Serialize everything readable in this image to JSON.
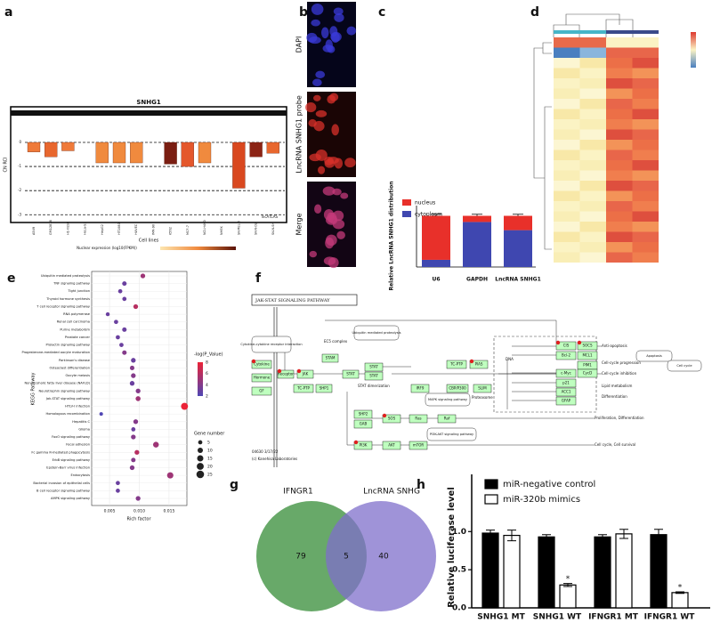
{
  "panel_labels": [
    "a",
    "b",
    "c",
    "d",
    "e",
    "f",
    "g",
    "h"
  ],
  "a": {
    "type": "bar",
    "title": "SNHG1",
    "xlabel": "Cell lines",
    "ylabel": "CN RCI",
    "legend_title": "Nuclear expression (log10(FPKM))",
    "source": "lncATLAS",
    "categories": [
      "A549",
      "GM12878",
      "H1-hESC",
      "HeLa-S3",
      "HepG2",
      "HT1080",
      "HUVEC",
      "IMR-90",
      "K562",
      "MCF-7",
      "NCI-H460",
      "NHEK",
      "SK-MEL-5",
      "SK-N-DZ",
      "SK-N-SH"
    ],
    "values": [
      -0.4,
      -0.6,
      -0.35,
      null,
      -0.85,
      -0.85,
      -0.85,
      null,
      -0.9,
      -1.0,
      -0.85,
      null,
      -1.9,
      -0.6,
      -0.45
    ],
    "colors": [
      "#ef7a3a",
      "#e8672e",
      "#ef7a3a",
      "#ffffff",
      "#f08a3e",
      "#f08a3e",
      "#f08a3e",
      "#ffffff",
      "#7a1e12",
      "#e4572c",
      "#f08a3e",
      "#ffffff",
      "#d9481f",
      "#8c2415",
      "#e8672e"
    ],
    "ylim": [
      -3.3,
      1.5
    ],
    "yticks": [
      0,
      -1,
      -2,
      -3
    ]
  },
  "b": {
    "rows": [
      "DAPI",
      "LncRNA SNHG1 probe",
      "Merge"
    ]
  },
  "c": {
    "type": "bar",
    "stacked": true,
    "ylabel": "Relative LncRNA SNHG1 distribution",
    "categories": [
      "U6",
      "GAPDH",
      "LncRNA SNHG1"
    ],
    "series": [
      {
        "name": "nucleus",
        "color": "#e8302a",
        "values": [
          86,
          12,
          28
        ],
        "errors": [
          3,
          3,
          3
        ]
      },
      {
        "name": "cytoplasm",
        "color": "#3f47b0",
        "values": [
          14,
          88,
          72
        ]
      }
    ],
    "ylim": [
      0,
      120
    ]
  },
  "d": {
    "type": "heatmap"
  },
  "e": {
    "type": "scatter",
    "xlabel": "Rich factor",
    "ylabel": "KEGG Pathway",
    "color_legend_title": "-log(P_Value)",
    "size_legend_title": "Gene number",
    "pathways": [
      "Ubiquitin mediated proteolysis",
      "TNF signaling pathway",
      "Tight junction",
      "Thyroid hormone synthesis",
      "T cell receptor signaling pathway",
      "RNA polymerase",
      "Renal cell carcinoma",
      "Purine metabolism",
      "Prostate cancer",
      "Prolactin signaling pathway",
      "Progesterone-mediated oocyte maturation",
      "Parkinson's disease",
      "Osteoclast differentiation",
      "Oocyte meiosis",
      "Non-alcoholic fatty liver disease (NAFLD)",
      "Neurotrophin signaling pathway",
      "Jak-STAT signaling pathway",
      "HTLV-I infection",
      "Homologous recombination",
      "Hepatitis C",
      "Glioma",
      "FoxO signaling pathway",
      "Focal adhesion",
      "Fc gamma R-mediated phagocytosis",
      "ErbB signaling pathway",
      "Epstein-Barr virus infection",
      "Endocytosis",
      "Bacterial invasion of epithelial cells",
      "B cell receptor signaling pathway",
      "AMPK signaling pathway"
    ],
    "rich_factor": [
      0.0106,
      0.0075,
      0.0068,
      0.0075,
      0.0094,
      0.0047,
      0.0061,
      0.0075,
      0.0064,
      0.007,
      0.0075,
      0.009,
      0.0088,
      0.009,
      0.0088,
      0.0098,
      0.0098,
      0.0176,
      0.0036,
      0.0094,
      0.009,
      0.009,
      0.0128,
      0.0096,
      0.009,
      0.0088,
      0.0152,
      0.0064,
      0.0064,
      0.0098
    ],
    "neg_log_p": [
      5,
      3,
      3,
      3,
      6,
      3,
      3,
      3,
      3,
      3,
      4,
      3,
      4,
      4,
      3,
      4,
      5,
      8,
      2,
      4,
      3,
      4,
      5,
      6,
      4,
      4,
      5,
      3,
      3,
      4
    ],
    "gene_number": [
      7,
      6,
      5,
      5,
      7,
      4,
      5,
      6,
      5,
      5,
      6,
      7,
      6,
      7,
      7,
      7,
      8,
      20,
      3,
      7,
      5,
      7,
      12,
      7,
      6,
      7,
      15,
      5,
      5,
      7
    ],
    "xlim": [
      0.002,
      0.018
    ],
    "xticks": [
      0.005,
      {
        "value": 0.01,
        "label": "0.010"
      },
      0.015
    ],
    "color_ticks": [
      2,
      4,
      6,
      8
    ],
    "size_ticks": [
      5,
      10,
      15,
      20,
      25
    ]
  },
  "f": {
    "title": "JAK-STAT SIGNALING PATHWAY",
    "nodes": [
      "Cytokine-cytokine receptor interaction",
      "Cytokine",
      "Hormone",
      "GF",
      "Receptor",
      "JAK",
      "TC-PTP",
      "SHP1",
      "STAM",
      "STAT",
      "EC5 complex",
      "Ubiquitin mediated proteolysis",
      "STAT",
      "STAT",
      "STAT dimerization",
      "IRF9",
      "CBP/P300",
      "SLIM",
      "TC-PTP",
      "PIAS",
      "Proteasome",
      "DNA",
      "CIS",
      "SOCS",
      "Bcl-2",
      "MCL1",
      "PIM1",
      "c-Myc",
      "CycD",
      "p21",
      "ACC1",
      "GFAP",
      "Anti-apoptosis",
      "Cell-cycle progression",
      "Cell-cycle inhibition",
      "Lipid metabolism",
      "Differentiation",
      "Apoptosis",
      "Cell cycle",
      "SHP2",
      "GAB",
      "SOS",
      "Ras",
      "Raf",
      "MAPK signaling pathway",
      "PI3K",
      "AKT",
      "mTOR",
      "PI3K-AKT signaling pathway",
      "Proliferation, Differentiation",
      "Cell cycle, Cell survival",
      "04630 3/17/22",
      "(c) Kanehisa Laboratories"
    ]
  },
  "g": {
    "type": "venn",
    "sets": [
      "IFNGR1",
      "LncRNA SNHG"
    ],
    "only_first": 79,
    "both": 5,
    "only_second": 40
  },
  "h": {
    "type": "bar",
    "ylabel": "Relative luciferase level",
    "categories": [
      "SNHG1 MT",
      "SNHG1 WT",
      "IFNGR1 MT",
      "IFNGR1 WT"
    ],
    "series": [
      {
        "name": "miR-negative control",
        "color": "#000000",
        "values": [
          0.98,
          0.93,
          0.93,
          0.96
        ],
        "errors": [
          0.04,
          0.03,
          0.03,
          0.07
        ]
      },
      {
        "name": "miR-320b mimics",
        "color": "#ffffff",
        "values": [
          0.95,
          0.3,
          0.97,
          0.2
        ],
        "errors": [
          0.07,
          0.02,
          0.06,
          0.01
        ]
      }
    ],
    "significance": [
      null,
      "*",
      null,
      "*"
    ],
    "ylim": [
      0,
      1.75
    ],
    "yticks": [
      {
        "value": 0,
        "label": "0.0"
      },
      0.5,
      {
        "value": 1,
        "label": "1.0"
      }
    ]
  }
}
